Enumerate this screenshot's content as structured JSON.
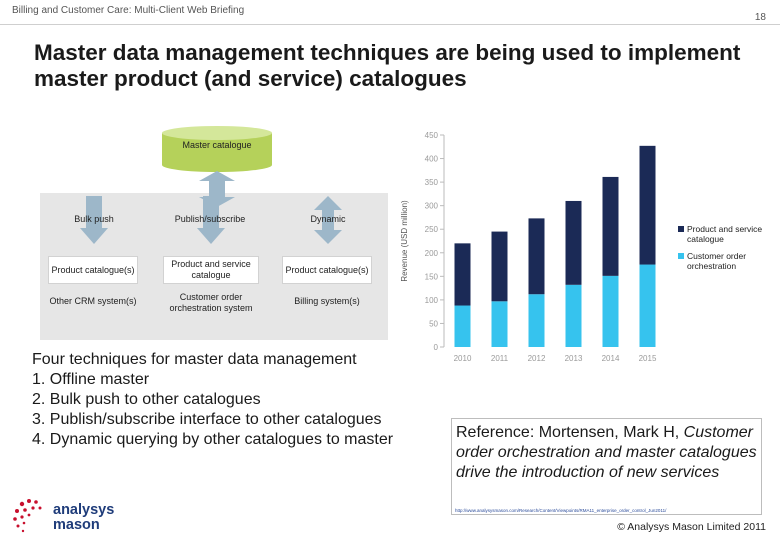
{
  "header": {
    "text": "Billing and Customer Care: Multi-Client Web Briefing",
    "page_number": "18"
  },
  "title": "Master data management techniques are being used to implement master product (and service) catalogues",
  "diagram": {
    "master_label": "Master catalogue",
    "columns": [
      {
        "label": "Bulk push"
      },
      {
        "label": "Publish/subscribe"
      },
      {
        "label": "Dynamic"
      }
    ],
    "catalogues": [
      "Product catalogue(s)",
      "Product and service catalogue",
      "Product catalogue(s)"
    ],
    "systems": [
      "Other CRM system(s)",
      "Customer order orchestration system",
      "Billing system(s)"
    ],
    "colors": {
      "cylinder": "#b5d15a",
      "cylinder_top": "#d4e79a",
      "arrow": "#9db7c9",
      "panel": "#e6e6e6"
    }
  },
  "chart_data": {
    "type": "bar",
    "stacked": true,
    "categories": [
      "2010",
      "2011",
      "2012",
      "2013",
      "2014",
      "2015"
    ],
    "series": [
      {
        "name": "Customer order orchestration",
        "color": "#36c3ee",
        "values": [
          88,
          97,
          112,
          132,
          151,
          175
        ]
      },
      {
        "name": "Product and service catalogue",
        "color": "#1b2a56",
        "values": [
          132,
          148,
          161,
          178,
          210,
          252
        ]
      }
    ],
    "ylabel": "Revenue (USD million)",
    "yticks": [
      0,
      50,
      100,
      150,
      200,
      250,
      300,
      350,
      400,
      450
    ],
    "ylim": [
      0,
      450
    ],
    "grid": false,
    "legend": "right"
  },
  "techniques": {
    "intro": "Four techniques for master data management",
    "items": [
      "1.  Offline master",
      "2.  Bulk push to other catalogues",
      "3.  Publish/subscribe interface to other catalogues",
      "4.  Dynamic querying by other catalogues to master"
    ]
  },
  "reference": {
    "prefix": "Reference: Mortensen, Mark H, ",
    "title": "Customer order orchestration and master catalogues drive the introduction of new services",
    "url": "http://www.analysysmason.com/Research/Content/Viewpoints/RMA11_enterprise_order_control_Jun2011/"
  },
  "logo": {
    "line1": "analysys",
    "line2": "mason",
    "dot_color": "#c8102e"
  },
  "copyright": "© Analysys Mason Limited 2011"
}
